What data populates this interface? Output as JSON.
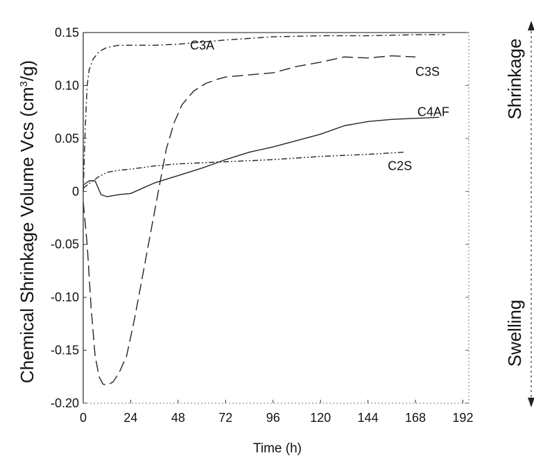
{
  "chart_data": {
    "type": "line",
    "xlabel": "Time (h)",
    "ylabel_text": "Chemical Shrinkage Volume Vcs (cm",
    "ylabel_sup": "3",
    "ylabel_tail": "/g)",
    "xlim": [
      0,
      195
    ],
    "ylim": [
      -0.2,
      0.15
    ],
    "xticks": [
      0,
      24,
      48,
      72,
      96,
      120,
      144,
      168,
      192
    ],
    "xtick_labels": [
      "0",
      "24",
      "48",
      "72",
      "96",
      "120",
      "144",
      "168",
      "192"
    ],
    "yticks": [
      0.15,
      0.1,
      0.05,
      0,
      -0.05,
      -0.1,
      -0.15,
      -0.2
    ],
    "ytick_labels": [
      "0.15",
      "0.10",
      "0.05",
      "0",
      "-0.05",
      "-0.10",
      "-0.15",
      "-0.20"
    ],
    "grid": false,
    "series": [
      {
        "name": "C3A",
        "style": "dashdot",
        "label_at": [
          54,
          0.138
        ],
        "x": [
          0,
          1,
          2,
          3,
          5,
          8,
          12,
          18,
          24,
          36,
          48,
          72,
          96,
          120,
          144,
          168,
          183
        ],
        "y": [
          0,
          0.06,
          0.1,
          0.115,
          0.125,
          0.132,
          0.136,
          0.138,
          0.138,
          0.138,
          0.139,
          0.143,
          0.146,
          0.147,
          0.147,
          0.148,
          0.148
        ]
      },
      {
        "name": "C3S",
        "style": "dashed",
        "label_at": [
          168,
          0.113
        ],
        "x": [
          0,
          2,
          4,
          6,
          8,
          10,
          12,
          15,
          18,
          22,
          26,
          30,
          34,
          38,
          42,
          46,
          50,
          56,
          62,
          68,
          72,
          84,
          96,
          108,
          120,
          132,
          144,
          156,
          168
        ],
        "y": [
          -0.01,
          -0.05,
          -0.11,
          -0.155,
          -0.175,
          -0.182,
          -0.183,
          -0.18,
          -0.172,
          -0.155,
          -0.12,
          -0.08,
          -0.04,
          0.0,
          0.04,
          0.065,
          0.082,
          0.095,
          0.102,
          0.106,
          0.108,
          0.11,
          0.112,
          0.118,
          0.122,
          0.127,
          0.126,
          0.128,
          0.127
        ]
      },
      {
        "name": "C4AF",
        "style": "solid",
        "label_at": [
          169,
          0.075
        ],
        "x": [
          0,
          3,
          6,
          9,
          12,
          18,
          24,
          36,
          48,
          60,
          72,
          84,
          96,
          108,
          120,
          132,
          144,
          156,
          168,
          180
        ],
        "y": [
          0.006,
          0.01,
          0.01,
          -0.003,
          -0.005,
          -0.003,
          -0.002,
          0.008,
          0.015,
          0.022,
          0.03,
          0.037,
          0.042,
          0.048,
          0.054,
          0.062,
          0.066,
          0.068,
          0.069,
          0.07
        ]
      },
      {
        "name": "C2S",
        "style": "dashdotdot",
        "label_at": [
          154,
          0.024
        ],
        "x": [
          0,
          4,
          8,
          12,
          18,
          24,
          36,
          48,
          60,
          72,
          96,
          120,
          144,
          162
        ],
        "y": [
          0.003,
          0.009,
          0.014,
          0.018,
          0.02,
          0.021,
          0.024,
          0.026,
          0.027,
          0.028,
          0.03,
          0.033,
          0.035,
          0.037
        ]
      }
    ],
    "right_axis": {
      "top_label": "Shrinkage",
      "bottom_label": "Swelling"
    }
  }
}
